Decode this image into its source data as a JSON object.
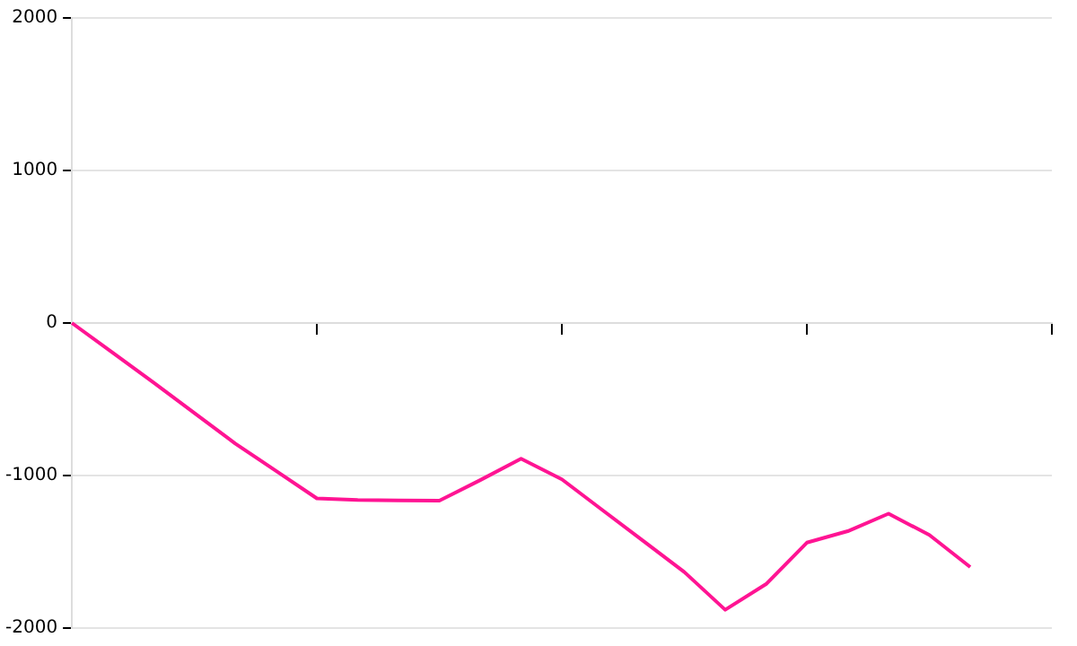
{
  "chart_data": {
    "type": "line",
    "categories": [
      null,
      null,
      null,
      null,
      null,
      null,
      null,
      null,
      null,
      null,
      null,
      null,
      null,
      null,
      null,
      null,
      null,
      null,
      null,
      null,
      null,
      null,
      null,
      null,
      null
    ],
    "series": [
      {
        "color": "#ff1493",
        "values": [
          0,
          -195,
          -390,
          -590,
          -790,
          -970,
          -1150,
          -1160,
          -1163,
          -1165,
          -1030,
          -890,
          -1025,
          -1228,
          -1430,
          -1633,
          -1880,
          -1712,
          -1440,
          -1365,
          -1250,
          -1390,
          -1600,
          null,
          null
        ]
      }
    ],
    "ylim": [
      -2000,
      2000
    ],
    "yticks": [
      -2000,
      -1000,
      0,
      1000,
      2000
    ],
    "grid": "y",
    "legend": false,
    "marker": "none",
    "line_style": "solid"
  }
}
